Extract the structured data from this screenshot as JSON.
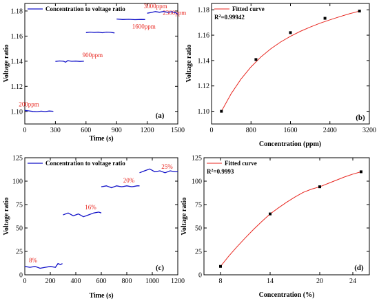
{
  "colors": {
    "series": "#1010c8",
    "fit": "#e8261f",
    "points": "#000000",
    "annotation": "#e8261f"
  },
  "chart_data": [
    {
      "id": "a",
      "type": "line",
      "panel_label": "(a)",
      "xlabel": "Time (s)",
      "ylabel": "Voltage ratio",
      "xlim": [
        0,
        1500
      ],
      "ylim": [
        1.09,
        1.186
      ],
      "xticks": [
        0,
        300,
        600,
        900,
        1200,
        1500
      ],
      "yticks": [
        1.1,
        1.12,
        1.14,
        1.16,
        1.18
      ],
      "ytick_decimals": 2,
      "legend": {
        "label": "Concentration to voltage ratio",
        "position": "top-left"
      },
      "segments": [
        {
          "label": "200ppm",
          "x": [
            0,
            40,
            80,
            120,
            160,
            200,
            240,
            280
          ],
          "y": [
            1.1008,
            1.1004,
            1.1,
            1.0998,
            1.1002,
            1.0999,
            1.1003,
            1.1001
          ]
        },
        {
          "label": "900ppm",
          "x": [
            300,
            340,
            380,
            400,
            420,
            460,
            500,
            540,
            580
          ],
          "y": [
            1.1398,
            1.1402,
            1.14,
            1.1392,
            1.1404,
            1.1399,
            1.1401,
            1.1398,
            1.14
          ]
        },
        {
          "label": "1600ppm",
          "x": [
            600,
            640,
            680,
            720,
            760,
            800,
            840,
            880
          ],
          "y": [
            1.1628,
            1.1632,
            1.1629,
            1.1631,
            1.1627,
            1.1632,
            1.163,
            1.1625
          ]
        },
        {
          "label": "2300ppm",
          "x": [
            900,
            960,
            1020,
            1080,
            1140,
            1180
          ],
          "y": [
            1.1736,
            1.1732,
            1.1734,
            1.1731,
            1.1733,
            1.1732
          ]
        },
        {
          "label": "3000ppm",
          "x": [
            1200,
            1240,
            1280,
            1320,
            1360,
            1400,
            1440,
            1480,
            1500
          ],
          "y": [
            1.1782,
            1.1788,
            1.1795,
            1.179,
            1.1796,
            1.1789,
            1.1794,
            1.1786,
            1.1775
          ]
        }
      ]
    },
    {
      "id": "b",
      "type": "scatter",
      "panel_label": "(b)",
      "xlabel": "Concentration (ppm)",
      "ylabel": "Voltage ratio",
      "xlim": [
        0,
        3200
      ],
      "ylim": [
        1.09,
        1.185
      ],
      "xticks": [
        0,
        800,
        1600,
        2400,
        3200
      ],
      "yticks": [
        1.1,
        1.12,
        1.14,
        1.16,
        1.18
      ],
      "ytick_decimals": 2,
      "legend": {
        "label": "Fitted curve",
        "position": "top-left"
      },
      "r2_label": "R",
      "r2_value": "=0.99942",
      "points": {
        "x": [
          200,
          900,
          1600,
          2300,
          3000
        ],
        "y": [
          1.1,
          1.1408,
          1.162,
          1.1733,
          1.179
        ]
      },
      "fit": {
        "x": [
          200,
          400,
          600,
          800,
          1000,
          1200,
          1400,
          1600,
          1800,
          2000,
          2200,
          2400,
          2600,
          2800,
          3000
        ],
        "y": [
          1.1,
          1.114,
          1.1255,
          1.135,
          1.1428,
          1.1492,
          1.1546,
          1.1591,
          1.163,
          1.1664,
          1.1694,
          1.1721,
          1.1746,
          1.1769,
          1.179
        ]
      }
    },
    {
      "id": "c",
      "type": "line",
      "panel_label": "(c)",
      "xlabel": "Time (s)",
      "ylabel": "Voltage ratio",
      "xlim": [
        0,
        1200
      ],
      "ylim": [
        0,
        125
      ],
      "xticks": [
        0,
        200,
        400,
        600,
        800,
        1000,
        1200
      ],
      "yticks": [
        0,
        25,
        50,
        75,
        100,
        125
      ],
      "ytick_decimals": 0,
      "legend": {
        "label": "Concentration to voltage ratio",
        "position": "top-left"
      },
      "segments": [
        {
          "label": "8%",
          "x": [
            0,
            40,
            80,
            120,
            160,
            200,
            240,
            260,
            280,
            295
          ],
          "y": [
            9,
            8,
            9,
            7,
            8,
            9,
            8,
            12,
            11,
            12
          ]
        },
        {
          "label": "16%",
          "x": [
            300,
            340,
            380,
            420,
            460,
            500,
            540,
            580,
            600
          ],
          "y": [
            64,
            66,
            63,
            65,
            62,
            64,
            66,
            67,
            66
          ]
        },
        {
          "label": "20%",
          "x": [
            600,
            640,
            680,
            720,
            760,
            800,
            840,
            880,
            900
          ],
          "y": [
            94,
            95,
            93,
            95,
            94,
            95,
            94,
            95,
            95
          ]
        },
        {
          "label": "25%",
          "x": [
            900,
            940,
            980,
            1020,
            1060,
            1100,
            1140,
            1180,
            1200
          ],
          "y": [
            109,
            111,
            113,
            110,
            111,
            109,
            111,
            110,
            110
          ]
        }
      ]
    },
    {
      "id": "d",
      "type": "scatter",
      "panel_label": "(d)",
      "xlabel": "Concentration (%)",
      "ylabel": "Voltage ratio",
      "xlim": [
        6,
        26
      ],
      "ylim": [
        0,
        125
      ],
      "xticks": [
        8,
        14,
        20,
        24
      ],
      "yticks": [
        0,
        25,
        50,
        75,
        100,
        125
      ],
      "ytick_decimals": 0,
      "legend": {
        "label": "Fitted curve",
        "position": "top-left"
      },
      "r2_label": "R",
      "r2_value": "=0.9993",
      "points": {
        "x": [
          8,
          14,
          20,
          25
        ],
        "y": [
          9,
          65,
          94,
          110
        ]
      },
      "fit": {
        "x": [
          8,
          9,
          10,
          11,
          12,
          13,
          14,
          15,
          16,
          17,
          18,
          19,
          20,
          21,
          22,
          23,
          24,
          25
        ],
        "y": [
          9,
          20,
          30,
          39.5,
          48.5,
          57,
          65,
          71.5,
          77.5,
          83,
          88,
          91.5,
          94,
          97.5,
          101,
          104.5,
          107.5,
          110
        ]
      }
    }
  ]
}
